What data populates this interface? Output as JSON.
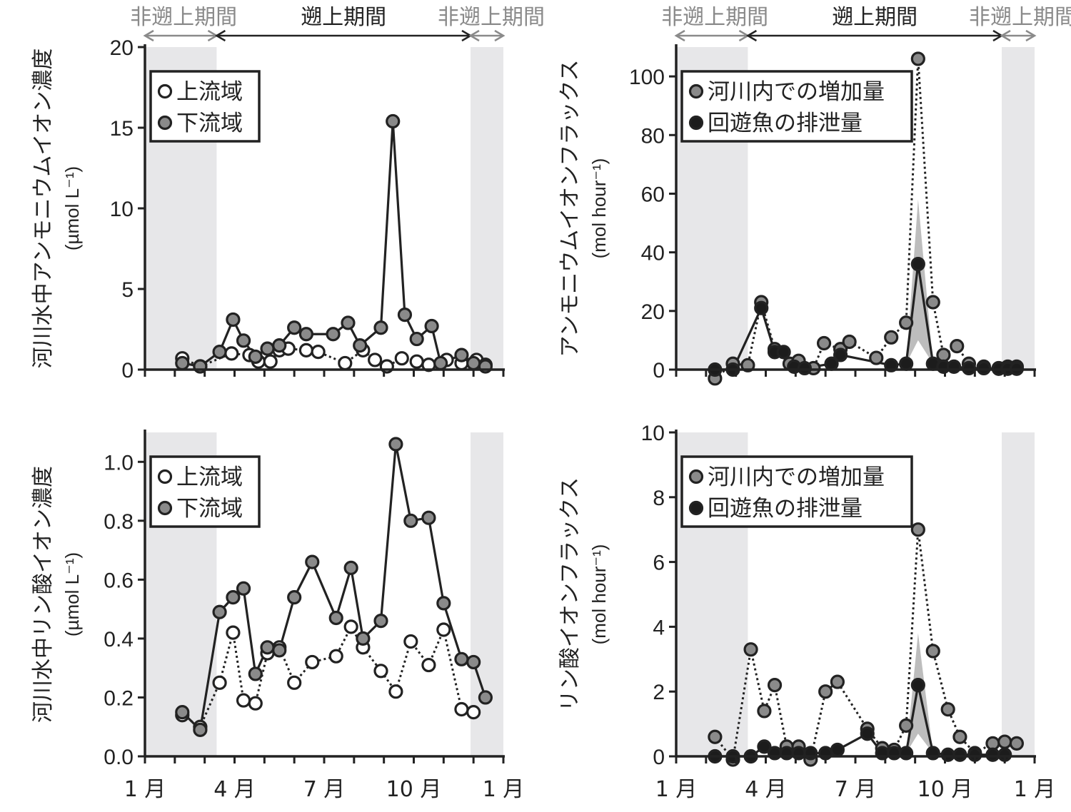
{
  "colors": {
    "axis": "#222222",
    "shade": "#e7e7e9",
    "open_fill": "#ffffff",
    "grey_fill": "#8a8a8a",
    "black_fill": "#1c1c1c",
    "band": "#bdbdbd",
    "period_active": "#222222",
    "period_inactive": "#8a8a8a"
  },
  "period_labels": {
    "non_run": "非遡上期間",
    "run": "遡上期間"
  },
  "x_axis": {
    "tick_labels": [
      "1 月",
      "4 月",
      "7 月",
      "10 月",
      "1 月"
    ],
    "tick_months": [
      0,
      3,
      6,
      9,
      12
    ],
    "xlim": [
      0,
      12
    ],
    "shaded_ranges": [
      [
        0,
        2.4
      ],
      [
        10.9,
        12
      ]
    ],
    "run_period": [
      2.4,
      10.9
    ]
  },
  "chart_data": [
    {
      "id": "ammonium-concentration",
      "type": "line",
      "ylabel": "河川水中アンモニウムイオン濃度",
      "yunit": "(µmol L⁻¹)",
      "ylim": [
        0,
        20
      ],
      "yticks": [
        0,
        5,
        10,
        15,
        20
      ],
      "ytick_labels": [
        "0",
        "5",
        "10",
        "15",
        "20"
      ],
      "legend": {
        "position": "top-left",
        "entries": [
          "上流域",
          "下流域"
        ]
      },
      "series": [
        {
          "name": "上流域",
          "marker": "open",
          "line": "dotted",
          "x": [
            1.25,
            1.85,
            2.9,
            3.5,
            3.8,
            4.2,
            4.5,
            4.8,
            5.4,
            5.8,
            6.7,
            7.3,
            7.7,
            8.1,
            8.6,
            9.1,
            9.5,
            10.1,
            10.6,
            11.1,
            11.4
          ],
          "y": [
            0.7,
            0.2,
            1.0,
            0.9,
            0.5,
            0.5,
            1.2,
            1.3,
            1.2,
            1.1,
            0.4,
            1.2,
            0.6,
            0.2,
            0.7,
            0.5,
            0.3,
            0.6,
            0.4,
            0.6,
            0.3
          ]
        },
        {
          "name": "下流域",
          "marker": "grey",
          "line": "solid",
          "x": [
            1.25,
            1.85,
            2.5,
            2.95,
            3.3,
            3.7,
            4.1,
            4.5,
            5.0,
            5.4,
            6.3,
            6.8,
            7.2,
            7.9,
            8.3,
            8.7,
            9.1,
            9.6,
            9.9,
            10.6,
            11.0,
            11.4
          ],
          "y": [
            0.4,
            0.2,
            1.1,
            3.1,
            1.8,
            0.8,
            1.3,
            1.5,
            2.6,
            2.2,
            2.2,
            2.9,
            1.5,
            2.6,
            15.4,
            3.4,
            1.9,
            2.7,
            0.4,
            0.9,
            0.4,
            0.2
          ]
        }
      ]
    },
    {
      "id": "ammonium-flux",
      "type": "line",
      "ylabel": "アンモニウムイオンフラックス",
      "yunit": "(mol hour⁻¹)",
      "ylim": [
        0,
        110
      ],
      "yticks": [
        0,
        20,
        40,
        60,
        80,
        100
      ],
      "ytick_labels": [
        "0",
        "20",
        "40",
        "60",
        "80",
        "100"
      ],
      "legend": {
        "position": "top-left",
        "entries": [
          "河川内での増加量",
          "回遊魚の排泄量"
        ]
      },
      "series": [
        {
          "name": "河川内での増加量",
          "marker": "grey",
          "line": "dotted",
          "x": [
            1.3,
            1.9,
            2.4,
            2.85,
            3.3,
            3.8,
            4.1,
            4.6,
            4.95,
            5.5,
            5.8,
            6.7,
            7.2,
            7.7,
            8.1,
            8.6,
            8.95,
            9.4,
            9.8,
            10.3,
            10.8,
            11.1,
            11.4
          ],
          "y": [
            -3,
            2,
            1.5,
            23,
            7,
            2,
            3,
            0.5,
            9,
            7,
            9.5,
            4,
            11,
            16,
            106,
            23,
            5,
            8,
            2,
            1,
            0.5,
            1,
            1
          ]
        },
        {
          "name": "回遊魚の排泄量",
          "marker": "black",
          "line": "solid",
          "x": [
            1.3,
            1.9,
            2.85,
            3.3,
            3.6,
            3.95,
            4.3,
            5.2,
            5.5,
            7.2,
            7.7,
            8.1,
            8.6,
            8.95,
            9.3,
            9.8,
            10.3,
            10.8,
            11.1,
            11.4
          ],
          "y": [
            0,
            0,
            21,
            6,
            6,
            1,
            0.5,
            2,
            5,
            1.5,
            2,
            36,
            2,
            1,
            1,
            0.5,
            0.5,
            0.3,
            0.3,
            0.3
          ]
        }
      ],
      "band": {
        "x": [
          7.7,
          8.1,
          8.6
        ],
        "low": [
          2,
          10,
          2
        ],
        "high": [
          2,
          58,
          2
        ]
      }
    },
    {
      "id": "phosphate-concentration",
      "type": "line",
      "ylabel": "河川水中リン酸イオン濃度",
      "yunit": "(µmol L⁻¹)",
      "ylim": [
        0,
        1.1
      ],
      "yticks": [
        0.0,
        0.2,
        0.4,
        0.6,
        0.8,
        1.0
      ],
      "ytick_labels": [
        "0.0",
        "0.2",
        "0.4",
        "0.6",
        "0.8",
        "1.0"
      ],
      "legend": {
        "position": "top-left",
        "entries": [
          "上流域",
          "下流域"
        ]
      },
      "series": [
        {
          "name": "上流域",
          "marker": "open",
          "line": "dotted",
          "x": [
            1.25,
            1.85,
            2.5,
            2.95,
            3.3,
            3.7,
            4.1,
            4.5,
            5.0,
            5.6,
            6.4,
            6.9,
            7.3,
            7.9,
            8.4,
            8.9,
            9.5,
            10.0,
            10.6,
            11.0
          ],
          "y": [
            0.14,
            0.1,
            0.25,
            0.42,
            0.19,
            0.18,
            0.35,
            0.37,
            0.25,
            0.32,
            0.34,
            0.44,
            0.37,
            0.29,
            0.22,
            0.39,
            0.31,
            0.43,
            0.16,
            0.15
          ]
        },
        {
          "name": "下流域",
          "marker": "grey",
          "line": "solid",
          "x": [
            1.25,
            1.85,
            2.5,
            2.95,
            3.3,
            3.7,
            4.1,
            4.5,
            5.0,
            5.6,
            6.4,
            6.9,
            7.3,
            7.9,
            8.4,
            8.9,
            9.5,
            10.0,
            10.6,
            11.0,
            11.4
          ],
          "y": [
            0.15,
            0.09,
            0.49,
            0.54,
            0.57,
            0.28,
            0.37,
            0.36,
            0.54,
            0.66,
            0.47,
            0.64,
            0.4,
            0.46,
            1.06,
            0.8,
            0.81,
            0.52,
            0.33,
            0.32,
            0.2
          ]
        }
      ]
    },
    {
      "id": "phosphate-flux",
      "type": "line",
      "ylabel": "リン酸イオンフラックス",
      "yunit": "(mol hour⁻¹)",
      "ylim": [
        0,
        10
      ],
      "yticks": [
        0,
        2,
        4,
        6,
        8,
        10
      ],
      "ytick_labels": [
        "0",
        "2",
        "4",
        "6",
        "8",
        "10"
      ],
      "legend": {
        "position": "top-left",
        "entries": [
          "河川内での増加量",
          "回遊魚の排泄量"
        ]
      },
      "series": [
        {
          "name": "河川内での増加量",
          "marker": "grey",
          "line": "dotted",
          "x": [
            1.3,
            1.9,
            2.5,
            2.95,
            3.3,
            3.7,
            4.1,
            4.5,
            5.0,
            5.4,
            6.4,
            6.9,
            7.3,
            7.7,
            8.1,
            8.6,
            9.1,
            9.5,
            10.0,
            10.6,
            11.0,
            11.4
          ],
          "y": [
            0.6,
            -0.1,
            3.3,
            1.4,
            2.2,
            0.3,
            0.3,
            -0.1,
            2.0,
            2.3,
            0.85,
            0.25,
            0.2,
            0.95,
            7.0,
            3.25,
            1.45,
            0.6,
            0.1,
            0.4,
            0.45,
            0.4
          ]
        },
        {
          "name": "回遊魚の排泄量",
          "marker": "black",
          "line": "solid",
          "x": [
            1.3,
            1.9,
            2.5,
            2.95,
            3.3,
            3.7,
            4.1,
            4.5,
            5.0,
            5.4,
            6.4,
            6.9,
            7.3,
            7.7,
            8.1,
            8.6,
            9.1,
            9.5,
            10.0,
            10.6,
            11.0
          ],
          "y": [
            0,
            0,
            0,
            0.3,
            0.1,
            0.1,
            0.1,
            0.1,
            0.1,
            0.2,
            0.7,
            0.1,
            0.1,
            0.1,
            2.2,
            0.1,
            0.05,
            0.05,
            0.05,
            0.05,
            0.05
          ]
        }
      ],
      "band": {
        "x": [
          7.7,
          8.1,
          8.6
        ],
        "low": [
          0.1,
          0.7,
          0.1
        ],
        "high": [
          0.1,
          3.8,
          0.1
        ]
      }
    }
  ]
}
